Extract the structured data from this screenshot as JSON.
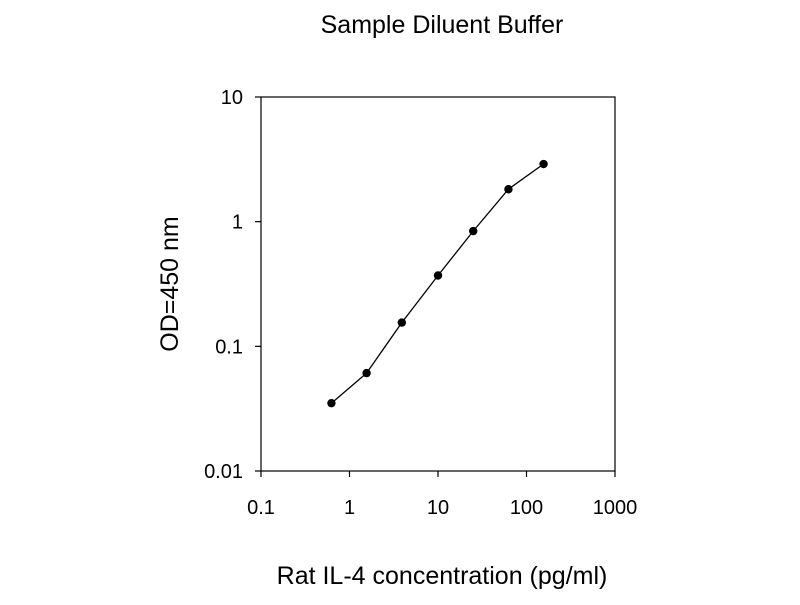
{
  "chart_data": {
    "type": "line",
    "title": "Sample Diluent Buffer",
    "xlabel": "Rat IL-4 concentration (pg/ml)",
    "ylabel": "OD=450 nm",
    "xscale": "log",
    "yscale": "log",
    "xlim": [
      0.1,
      1000
    ],
    "ylim": [
      0.01,
      10
    ],
    "x_ticks": [
      "0.1",
      "1",
      "10",
      "100",
      "1000"
    ],
    "y_ticks": [
      "0.01",
      "0.1",
      "1",
      "10"
    ],
    "grid": false,
    "legend": "none",
    "series": [
      {
        "x": [
          0.625,
          1.56,
          3.9,
          10,
          25,
          62.5,
          156
        ],
        "y": [
          0.035,
          0.061,
          0.155,
          0.37,
          0.84,
          1.82,
          2.9
        ],
        "marker": "circle",
        "color": "#000000"
      }
    ]
  }
}
